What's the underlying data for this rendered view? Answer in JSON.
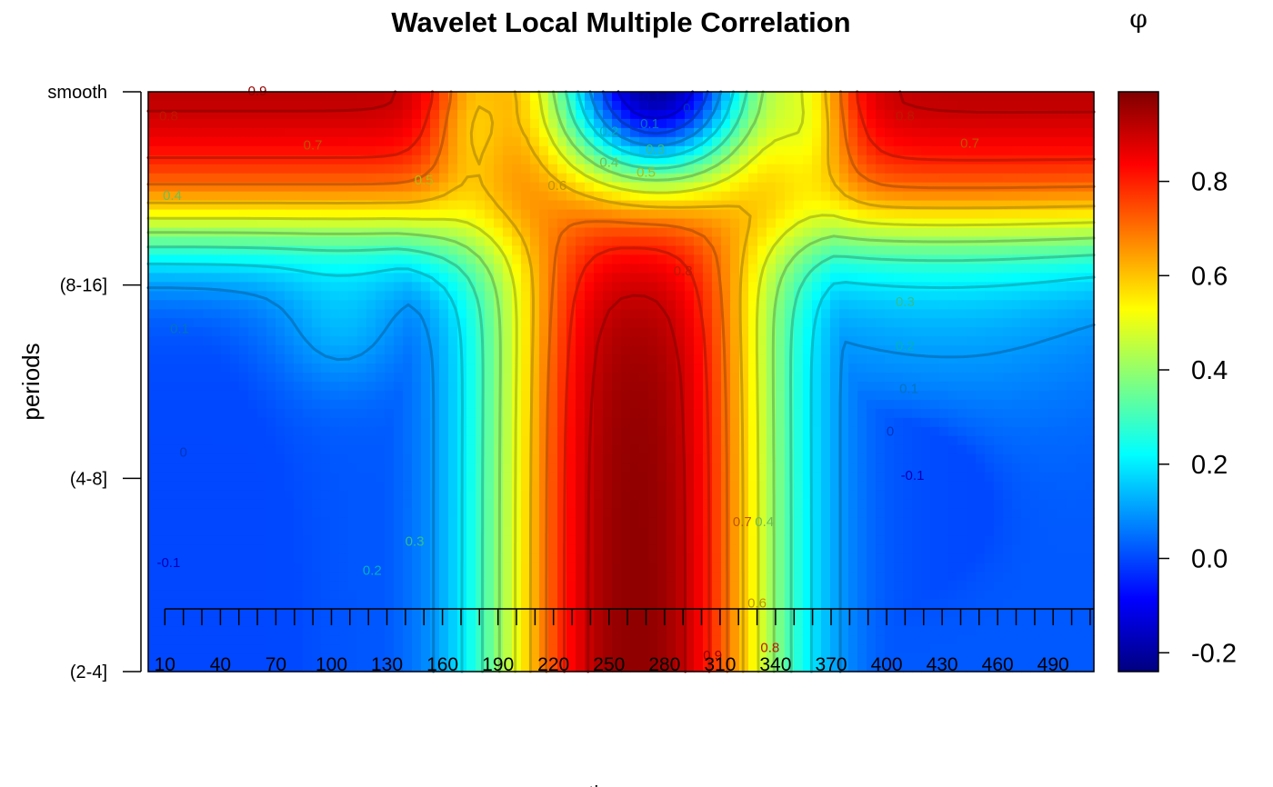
{
  "chart_data": {
    "type": "heatmap",
    "title": "Wavelet Local Multiple Correlation",
    "ylabel": "periods",
    "xlabel": "time",
    "colorbar_label": "φ",
    "y_categories": [
      "(2-4]",
      "(4-8]",
      "(8-16]",
      "smooth"
    ],
    "x_ticks": [
      10,
      40,
      70,
      100,
      130,
      160,
      190,
      220,
      250,
      280,
      310,
      340,
      370,
      400,
      430,
      460,
      490
    ],
    "x_range": [
      1,
      512
    ],
    "y_range": [
      1,
      4
    ],
    "colorbar_ticks": [
      -0.2,
      0.0,
      0.2,
      0.4,
      0.6,
      0.8
    ],
    "colorbar_tick_labels": [
      "-0.2",
      "0.0",
      "0.2",
      "0.4",
      "0.6",
      "0.8"
    ],
    "value_range": [
      -0.24,
      0.99
    ],
    "colormap": [
      "#00007F",
      "#0000FF",
      "#007FFF",
      "#00FFFF",
      "#7FFF7F",
      "#FFFF00",
      "#FF7F00",
      "#FF0000",
      "#7F0000"
    ],
    "contour_levels": [
      -0.1,
      0,
      0.1,
      0.2,
      0.3,
      0.4,
      0.5,
      0.6,
      0.7,
      0.8,
      0.9
    ],
    "contour_labels": [
      {
        "text": "0.9",
        "x": 60,
        "y": 4.0
      },
      {
        "text": "0.8",
        "x": 12,
        "y": 3.87
      },
      {
        "text": "0.7",
        "x": 90,
        "y": 3.72
      },
      {
        "text": "0.5",
        "x": 150,
        "y": 3.54
      },
      {
        "text": "0.4",
        "x": 14,
        "y": 3.46
      },
      {
        "text": "0.1",
        "x": 18,
        "y": 2.77
      },
      {
        "text": "0",
        "x": 20,
        "y": 2.13
      },
      {
        "text": "-0.1",
        "x": 12,
        "y": 1.56
      },
      {
        "text": "0.2",
        "x": 122,
        "y": 1.52
      },
      {
        "text": "0.3",
        "x": 145,
        "y": 1.67
      },
      {
        "text": "-0.1",
        "x": 272,
        "y": 3.97
      },
      {
        "text": "0",
        "x": 292,
        "y": 3.91
      },
      {
        "text": "0.1",
        "x": 272,
        "y": 3.83
      },
      {
        "text": "0.2",
        "x": 250,
        "y": 3.79
      },
      {
        "text": "0.3",
        "x": 275,
        "y": 3.7
      },
      {
        "text": "0.4",
        "x": 250,
        "y": 3.63
      },
      {
        "text": "0.5",
        "x": 270,
        "y": 3.58
      },
      {
        "text": "0.6",
        "x": 222,
        "y": 3.51
      },
      {
        "text": "0.8",
        "x": 290,
        "y": 3.07
      },
      {
        "text": "0.7",
        "x": 322,
        "y": 1.77
      },
      {
        "text": "0.4",
        "x": 334,
        "y": 1.77
      },
      {
        "text": "0.6",
        "x": 330,
        "y": 1.35
      },
      {
        "text": "0.9",
        "x": 306,
        "y": 1.08
      },
      {
        "text": "0.8",
        "x": 337,
        "y": 1.12
      },
      {
        "text": "0.8",
        "x": 410,
        "y": 3.87
      },
      {
        "text": "0.7",
        "x": 445,
        "y": 3.73
      },
      {
        "text": "0.3",
        "x": 410,
        "y": 2.91
      },
      {
        "text": "0.2",
        "x": 410,
        "y": 2.68
      },
      {
        "text": "0.1",
        "x": 412,
        "y": 2.46
      },
      {
        "text": "0",
        "x": 402,
        "y": 2.24
      },
      {
        "text": "-0.1",
        "x": 414,
        "y": 2.01
      }
    ]
  }
}
